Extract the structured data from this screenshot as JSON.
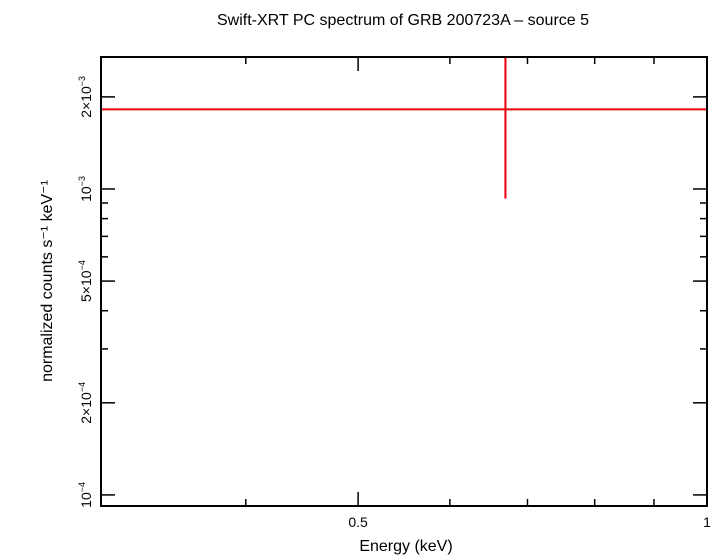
{
  "chart_data": {
    "type": "scatter",
    "title": "Swift-XRT PC spectrum of GRB 200723A – source 5",
    "xlabel": "Energy (keV)",
    "ylabel": "normalized counts s⁻¹ keV⁻¹",
    "x_scale": "log",
    "y_scale": "log",
    "xlim": [
      0.3,
      1.0
    ],
    "ylim": [
      9.2e-05,
      0.0027
    ],
    "x_ticks": [
      {
        "value": 0.5,
        "label": "0.5"
      },
      {
        "value": 1.0,
        "label": "1"
      }
    ],
    "y_ticks": [
      {
        "value": 0.0001,
        "mantissa": "10",
        "exponent": "−4"
      },
      {
        "value": 0.0002,
        "mantissa": "2×10",
        "exponent": "−4"
      },
      {
        "value": 0.0005,
        "mantissa": "5×10",
        "exponent": "−4"
      },
      {
        "value": 0.001,
        "mantissa": "10",
        "exponent": "−3"
      },
      {
        "value": 0.002,
        "mantissa": "2×10",
        "exponent": "−3"
      }
    ],
    "series": [
      {
        "color": "#e8000b",
        "points": [
          {
            "x": 0.67,
            "xerr_low": 0.3,
            "xerr_high": 1.0,
            "y": 0.00182,
            "yerr_low": 0.00093,
            "yerr_high": 0.0027
          }
        ]
      }
    ],
    "grid": false,
    "legend": "none"
  }
}
